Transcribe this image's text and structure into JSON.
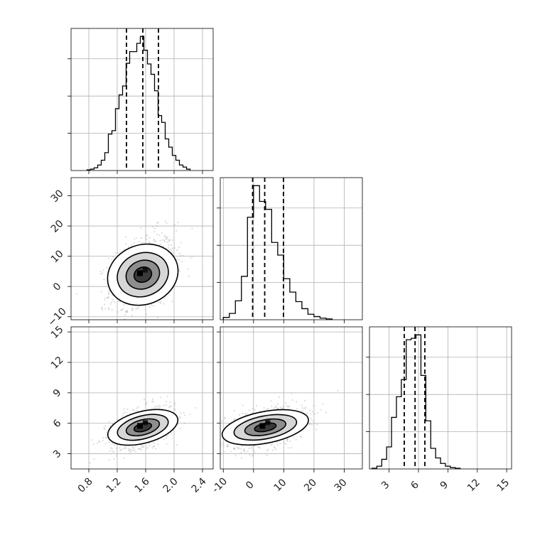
{
  "chart_data": [
    {
      "type": "histogram",
      "panel": "hist-param-1",
      "xlim": [
        0.55,
        2.55
      ],
      "grid": true,
      "quantile_lines": [
        1.33,
        1.56,
        1.78
      ],
      "bins": [
        {
          "x": 0.8,
          "count": 1
        },
        {
          "x": 0.85,
          "count": 2
        },
        {
          "x": 0.9,
          "count": 4
        },
        {
          "x": 0.95,
          "count": 8
        },
        {
          "x": 1.0,
          "count": 15
        },
        {
          "x": 1.05,
          "count": 26
        },
        {
          "x": 1.1,
          "count": 53
        },
        {
          "x": 1.15,
          "count": 58
        },
        {
          "x": 1.2,
          "count": 90
        },
        {
          "x": 1.25,
          "count": 110
        },
        {
          "x": 1.3,
          "count": 123
        },
        {
          "x": 1.35,
          "count": 156
        },
        {
          "x": 1.4,
          "count": 173
        },
        {
          "x": 1.45,
          "count": 173
        },
        {
          "x": 1.5,
          "count": 185
        },
        {
          "x": 1.55,
          "count": 195
        },
        {
          "x": 1.6,
          "count": 175
        },
        {
          "x": 1.65,
          "count": 155
        },
        {
          "x": 1.7,
          "count": 140
        },
        {
          "x": 1.75,
          "count": 116
        },
        {
          "x": 1.8,
          "count": 80
        },
        {
          "x": 1.85,
          "count": 70
        },
        {
          "x": 1.9,
          "count": 46
        },
        {
          "x": 1.95,
          "count": 34
        },
        {
          "x": 2.0,
          "count": 22
        },
        {
          "x": 2.05,
          "count": 15
        },
        {
          "x": 2.1,
          "count": 8
        },
        {
          "x": 2.15,
          "count": 5
        },
        {
          "x": 2.2,
          "count": 2
        }
      ]
    },
    {
      "type": "histogram",
      "panel": "hist-param-2",
      "xlim": [
        -11,
        36
      ],
      "grid": true,
      "quantile_lines": [
        -0.3,
        3.7,
        9.9
      ],
      "bins": [
        {
          "x": -9,
          "count": 3
        },
        {
          "x": -7,
          "count": 8
        },
        {
          "x": -5,
          "count": 24
        },
        {
          "x": -3,
          "count": 55
        },
        {
          "x": -1,
          "count": 130
        },
        {
          "x": 1,
          "count": 170
        },
        {
          "x": 3,
          "count": 150
        },
        {
          "x": 5,
          "count": 140
        },
        {
          "x": 7,
          "count": 98
        },
        {
          "x": 9,
          "count": 82
        },
        {
          "x": 11,
          "count": 52
        },
        {
          "x": 13,
          "count": 35
        },
        {
          "x": 15,
          "count": 23
        },
        {
          "x": 17,
          "count": 14
        },
        {
          "x": 19,
          "count": 7
        },
        {
          "x": 21,
          "count": 4
        },
        {
          "x": 23,
          "count": 2
        },
        {
          "x": 25,
          "count": 1
        }
      ]
    },
    {
      "type": "histogram",
      "panel": "hist-param-3",
      "xlim": [
        1.0,
        15.5
      ],
      "grid": true,
      "quantile_lines": [
        4.55,
        5.65,
        6.65
      ],
      "bins": [
        {
          "x": 1.5,
          "count": 1
        },
        {
          "x": 2.0,
          "count": 4
        },
        {
          "x": 2.5,
          "count": 14
        },
        {
          "x": 3.0,
          "count": 32
        },
        {
          "x": 3.5,
          "count": 75
        },
        {
          "x": 4.0,
          "count": 105
        },
        {
          "x": 4.5,
          "count": 130
        },
        {
          "x": 5.0,
          "count": 188
        },
        {
          "x": 5.5,
          "count": 190
        },
        {
          "x": 6.0,
          "count": 195
        },
        {
          "x": 6.5,
          "count": 136
        },
        {
          "x": 7.0,
          "count": 70
        },
        {
          "x": 7.5,
          "count": 30
        },
        {
          "x": 8.0,
          "count": 16
        },
        {
          "x": 8.5,
          "count": 8
        },
        {
          "x": 9.0,
          "count": 4
        },
        {
          "x": 9.5,
          "count": 2
        },
        {
          "x": 10.0,
          "count": 1
        }
      ]
    },
    {
      "type": "scatter-contour",
      "panel": "pair-1-2",
      "x_mean": 1.56,
      "x_sd": 0.22,
      "y_mean": 3.9,
      "y_sd": 6.3,
      "correlation": 0.35,
      "xlim": [
        0.55,
        2.55
      ],
      "ylim": [
        -11,
        36
      ],
      "grid": true,
      "y_ticks": [
        -10,
        0,
        10,
        20,
        30
      ]
    },
    {
      "type": "scatter-contour",
      "panel": "pair-1-3",
      "x_mean": 1.56,
      "x_sd": 0.22,
      "y_mean": 5.6,
      "y_sd": 1.0,
      "correlation": 0.45,
      "xlim": [
        0.55,
        2.55
      ],
      "ylim": [
        1.5,
        15.5
      ],
      "grid": true,
      "x_ticks": [
        0.8,
        1.2,
        1.6,
        2.0,
        2.4
      ],
      "x_tick_labels": [
        "0.8",
        "1.2",
        "1.6",
        "2.0",
        "2.4"
      ],
      "y_ticks": [
        3,
        6,
        9,
        12,
        15
      ]
    },
    {
      "type": "scatter-contour",
      "panel": "pair-2-3",
      "x_mean": 3.9,
      "x_sd": 6.3,
      "y_mean": 5.6,
      "y_sd": 1.0,
      "correlation": 0.4,
      "xlim": [
        -11,
        36
      ],
      "ylim": [
        1.5,
        15.5
      ],
      "grid": true,
      "x_ticks": [
        -10,
        0,
        10,
        20,
        30
      ]
    },
    {
      "type": "axis-ticks",
      "panel": "hist-param-3-x",
      "x_ticks": [
        3,
        6,
        9,
        12,
        15
      ]
    }
  ]
}
